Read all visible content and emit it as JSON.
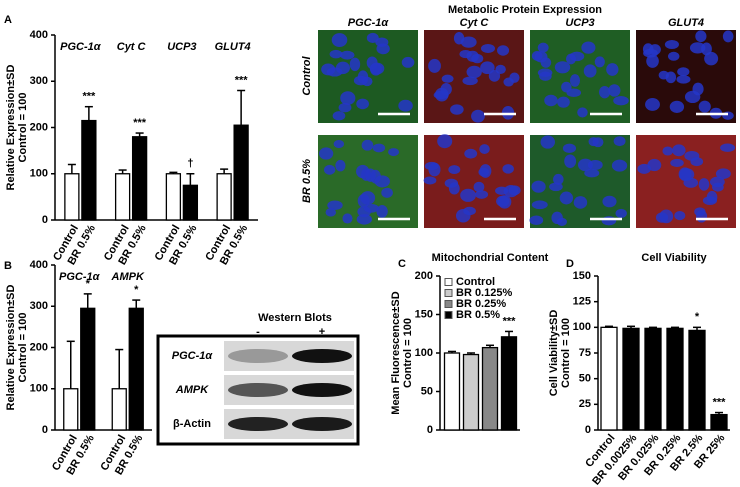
{
  "figure_title": "Metabolic Protein Expression",
  "panel_labels": [
    "A",
    "B",
    "C",
    "D"
  ],
  "microscopy": {
    "columns": [
      "PGC-1α",
      "Cyt C",
      "UCP3",
      "GLUT4"
    ],
    "rows": [
      "Control",
      "BR 0.5%"
    ]
  },
  "western_blot": {
    "title": "Western Blots",
    "lanes": [
      "-",
      "+"
    ],
    "rows": [
      "PGC-1α",
      "AMPK",
      "β-Actin"
    ]
  },
  "chart_data": [
    {
      "type": "bar",
      "ylabel": [
        "Relative Expression±SD",
        "Control = 100"
      ],
      "categories": [
        "PGC-1α",
        "Cyt C",
        "UCP3",
        "GLUT4"
      ],
      "series": [
        {
          "name": "Control",
          "color": "#ffffff",
          "values": [
            100,
            100,
            100,
            100
          ],
          "errors": [
            20,
            8,
            3,
            10
          ]
        },
        {
          "name": "BR 0.5%",
          "color": "#000000",
          "values": [
            215,
            180,
            75,
            205
          ],
          "errors": [
            30,
            8,
            25,
            75
          ]
        }
      ],
      "significance": [
        "***",
        "***",
        "†",
        "***"
      ],
      "ylim": [
        0,
        400
      ],
      "yticks": [
        0,
        100,
        200,
        300,
        400
      ]
    },
    {
      "type": "bar",
      "ylabel": [
        "Relative Expression±SD",
        "Control = 100"
      ],
      "categories": [
        "PGC-1α",
        "AMPK"
      ],
      "series": [
        {
          "name": "Control",
          "color": "#ffffff",
          "values": [
            100,
            100
          ],
          "errors": [
            115,
            95
          ]
        },
        {
          "name": "BR 0.5%",
          "color": "#000000",
          "values": [
            295,
            295
          ],
          "errors": [
            35,
            20
          ]
        }
      ],
      "significance": [
        "*",
        "*"
      ],
      "ylim": [
        0,
        400
      ],
      "yticks": [
        0,
        100,
        200,
        300,
        400
      ]
    },
    {
      "type": "bar",
      "title": "Mitochondrial Content",
      "ylabel": [
        "Mean Fluorescence±SD",
        "Control = 100"
      ],
      "series": [
        {
          "name": "Control",
          "color": "#ffffff",
          "values": [
            100
          ],
          "errors": [
            2
          ]
        },
        {
          "name": "BR 0.125%",
          "color": "#cccccc",
          "values": [
            98
          ],
          "errors": [
            2
          ]
        },
        {
          "name": "BR 0.25%",
          "color": "#888888",
          "values": [
            107
          ],
          "errors": [
            3
          ]
        },
        {
          "name": "BR 0.5%",
          "color": "#000000",
          "values": [
            121
          ],
          "errors": [
            7
          ]
        }
      ],
      "significance": [
        null,
        null,
        null,
        "***"
      ],
      "legend": "upper left",
      "ylim": [
        0,
        200
      ],
      "yticks": [
        0,
        50,
        100,
        150,
        200
      ]
    },
    {
      "type": "bar",
      "title": "Cell Viability",
      "ylabel": [
        "Cell Viability±SD",
        "Control = 100"
      ],
      "categories": [
        "Control",
        "BR 0.0025%",
        "BR 0.025%",
        "BR 0.25%",
        "BR 2.5%",
        "BR 25%"
      ],
      "values": [
        100,
        99,
        99,
        99,
        97,
        15
      ],
      "errors": [
        1,
        2,
        1,
        1,
        3,
        2
      ],
      "colors": [
        "#ffffff",
        "#000000",
        "#000000",
        "#000000",
        "#000000",
        "#000000"
      ],
      "significance": [
        null,
        null,
        null,
        null,
        "*",
        "***"
      ],
      "ylim": [
        0,
        150
      ],
      "yticks": [
        0,
        25,
        50,
        75,
        100,
        125,
        150
      ]
    }
  ]
}
